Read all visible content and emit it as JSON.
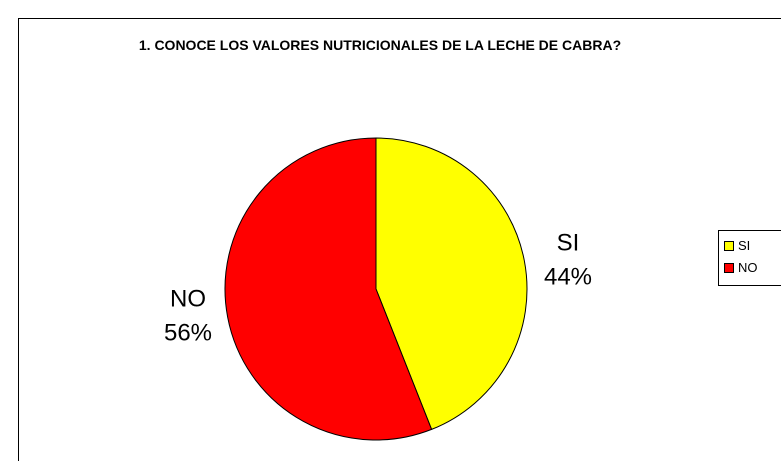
{
  "chart_data": {
    "type": "pie",
    "title": "1. CONOCE LOS VALORES NUTRICIONALES DE LA LECHE DE CABRA?",
    "categories": [
      "SI",
      "NO"
    ],
    "values": [
      44,
      56
    ],
    "value_labels": [
      "44%",
      "56%"
    ],
    "colors": [
      "#ffff00",
      "#ff0000"
    ],
    "legend": "right"
  }
}
